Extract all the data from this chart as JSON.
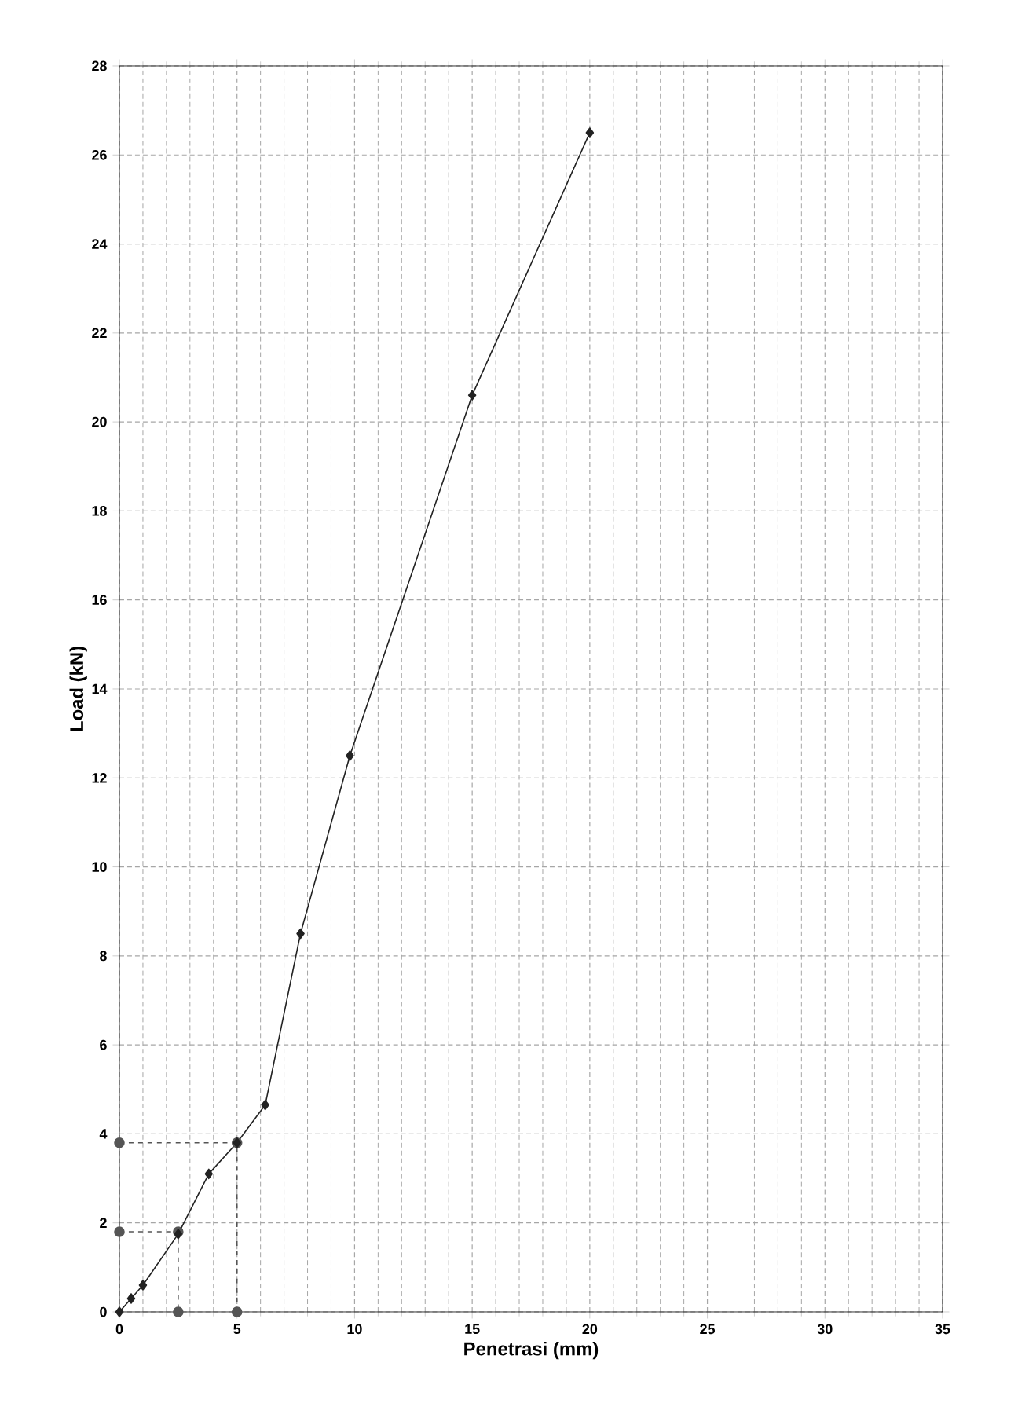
{
  "chart_data": {
    "type": "line",
    "xlabel": "Penetrasi (mm)",
    "ylabel": "Load (kN)",
    "xlim": [
      0,
      35
    ],
    "ylim": [
      0,
      28
    ],
    "xticks": [
      0,
      5,
      10,
      15,
      20,
      25,
      30,
      35
    ],
    "yticks": [
      0,
      2,
      4,
      6,
      8,
      10,
      12,
      14,
      16,
      18,
      20,
      22,
      24,
      26,
      28
    ],
    "grid": true,
    "series": [
      {
        "color": "#222222",
        "marker": "diamond",
        "line_style": "solid",
        "x": [
          0,
          0.5,
          1.0,
          2.5,
          3.8,
          5.0,
          6.2,
          7.7,
          9.8,
          15.0,
          20.0
        ],
        "values": [
          0,
          0.3,
          0.6,
          1.75,
          3.1,
          3.8,
          4.65,
          8.5,
          12.5,
          20.6,
          26.5
        ]
      },
      {
        "color": "#555555",
        "marker": "circle",
        "line_style": "dashed",
        "x": [
          0,
          2.5,
          2.5
        ],
        "values": [
          1.8,
          1.8,
          0
        ]
      },
      {
        "color": "#555555",
        "marker": "circle",
        "line_style": "dashed",
        "x": [
          0,
          5.0,
          5.0
        ],
        "values": [
          3.8,
          3.8,
          0
        ]
      }
    ]
  }
}
